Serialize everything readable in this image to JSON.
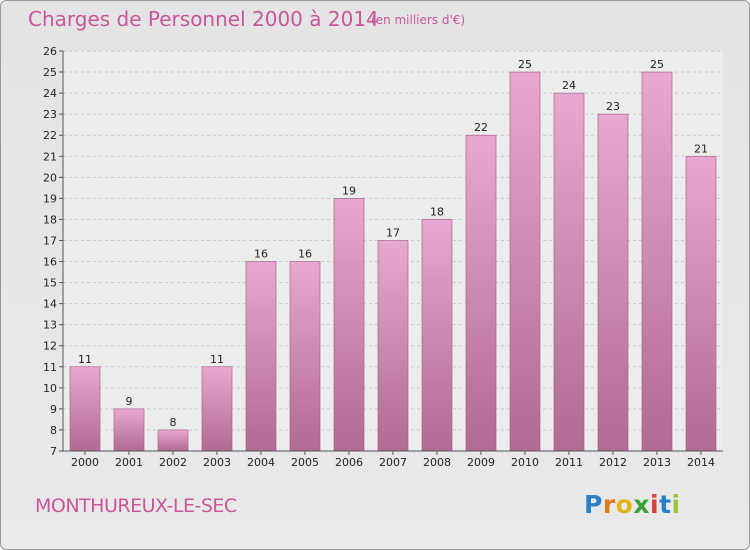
{
  "header": {
    "title": "Charges de Personnel 2000 à 2014",
    "subtitle": "(en milliers d'€)"
  },
  "footer": {
    "town": "MONTHUREUX-LE-SEC",
    "brand_letters": [
      "P",
      "r",
      "o",
      "x",
      "i",
      "t",
      "i"
    ],
    "brand_colors": [
      "#2a7fc9",
      "#e07b1a",
      "#e0b51a",
      "#3aa23a",
      "#d94040",
      "#2a7fc9",
      "#9bc43a"
    ]
  },
  "colors": {
    "accent": "#c9569a",
    "bar_light": "#e8a8cf",
    "bar_dark": "#b06a93"
  },
  "chart_data": {
    "type": "bar",
    "title": "Charges de Personnel 2000 à 2014",
    "subtitle": "(en milliers d'€)",
    "xlabel": "",
    "ylabel": "",
    "categories": [
      "2000",
      "2001",
      "2002",
      "2003",
      "2004",
      "2005",
      "2006",
      "2007",
      "2008",
      "2009",
      "2010",
      "2011",
      "2012",
      "2013",
      "2014"
    ],
    "values": [
      11,
      9,
      8,
      11,
      16,
      16,
      19,
      17,
      18,
      22,
      25,
      24,
      23,
      25,
      21
    ],
    "ylim": [
      7,
      26
    ],
    "yticks": [
      7,
      8,
      9,
      10,
      11,
      12,
      13,
      14,
      15,
      16,
      17,
      18,
      19,
      20,
      21,
      22,
      23,
      24,
      25,
      26
    ],
    "grid": true,
    "legend": "none"
  }
}
